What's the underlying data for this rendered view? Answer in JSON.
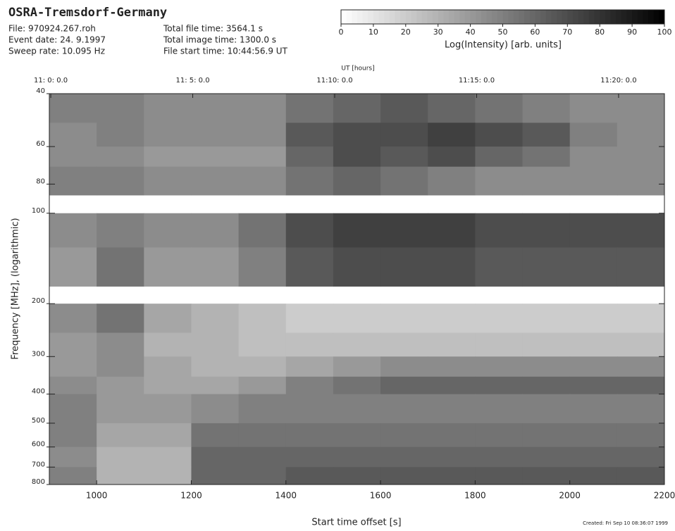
{
  "chart_data": {
    "type": "spectrogram",
    "title": "OSRA-Tremsdorf-Germany",
    "annotations": [
      "File: 970924.267.roh",
      "Event date: 24. 9.1997",
      "Sweep rate: 10.095 Hz",
      "Total file time: 3564.1 s",
      "Total image time: 1300.0 s",
      "File start time: 10:44:56.9 UT"
    ],
    "x_label": "Start time offset [s]",
    "y_label": "Frequency [MHz], (logarithmic)",
    "x2_label": "UT [hours]",
    "footer": "Created: Fri Sep 10 08:36:07 1999",
    "xlim": [
      900,
      2200
    ],
    "xticks": [
      1000,
      1200,
      1400,
      1600,
      1800,
      2000,
      2200
    ],
    "x2ticks": [
      {
        "value": 903.1,
        "label": "11: 0: 0.0"
      },
      {
        "value": 1203.1,
        "label": "11: 5: 0.0"
      },
      {
        "value": 1503.1,
        "label": "11:10: 0.0"
      },
      {
        "value": 1803.1,
        "label": "11:15: 0.0"
      },
      {
        "value": 2103.1,
        "label": "11:20: 0.0"
      }
    ],
    "ylim": [
      40,
      800
    ],
    "y_log": true,
    "yticks": [
      40,
      60,
      80,
      100,
      200,
      300,
      400,
      500,
      600,
      700,
      800
    ],
    "colorbar": {
      "label": "Log(Intensity) [arb. units]",
      "lim": [
        0,
        100
      ],
      "ticks": [
        0,
        10,
        20,
        30,
        40,
        50,
        60,
        70,
        80,
        90,
        100
      ]
    },
    "time_bins": [
      900,
      1000,
      1100,
      1200,
      1300,
      1400,
      1500,
      1600,
      1700,
      1800,
      1900,
      2000,
      2100,
      2200
    ],
    "freq_bins": [
      40,
      50,
      60,
      70,
      87,
      100,
      130,
      175,
      200,
      250,
      300,
      350,
      400,
      500,
      600,
      700,
      800
    ],
    "intensity": [
      [
        50,
        50,
        45,
        45,
        45,
        55,
        60,
        65,
        60,
        55,
        50,
        45,
        45
      ],
      [
        45,
        50,
        45,
        45,
        45,
        65,
        70,
        70,
        75,
        70,
        65,
        50,
        45
      ],
      [
        45,
        45,
        40,
        40,
        40,
        60,
        70,
        65,
        70,
        60,
        55,
        45,
        45
      ],
      [
        50,
        50,
        45,
        45,
        45,
        55,
        60,
        55,
        50,
        45,
        45,
        45,
        45
      ],
      [
        null,
        null,
        null,
        null,
        null,
        null,
        null,
        null,
        null,
        null,
        null,
        null,
        null
      ],
      [
        45,
        50,
        45,
        45,
        55,
        70,
        75,
        75,
        75,
        70,
        70,
        70,
        70
      ],
      [
        40,
        55,
        40,
        40,
        50,
        65,
        70,
        70,
        70,
        65,
        65,
        65,
        65
      ],
      [
        null,
        null,
        null,
        null,
        null,
        null,
        null,
        null,
        null,
        null,
        null,
        null,
        null
      ],
      [
        45,
        55,
        35,
        30,
        25,
        20,
        20,
        20,
        20,
        20,
        20,
        20,
        20
      ],
      [
        40,
        45,
        30,
        30,
        25,
        25,
        25,
        25,
        25,
        25,
        25,
        25,
        25
      ],
      [
        40,
        45,
        35,
        30,
        30,
        35,
        40,
        45,
        45,
        45,
        45,
        45,
        45
      ],
      [
        45,
        40,
        35,
        35,
        40,
        50,
        55,
        60,
        60,
        60,
        60,
        60,
        60
      ],
      [
        50,
        40,
        40,
        45,
        50,
        50,
        50,
        50,
        50,
        50,
        50,
        50,
        50
      ],
      [
        50,
        35,
        35,
        55,
        55,
        55,
        55,
        55,
        55,
        55,
        55,
        55,
        55
      ],
      [
        45,
        30,
        30,
        60,
        60,
        60,
        60,
        60,
        60,
        60,
        60,
        60,
        60
      ],
      [
        50,
        30,
        30,
        60,
        60,
        65,
        65,
        65,
        65,
        65,
        65,
        65,
        65
      ]
    ]
  }
}
